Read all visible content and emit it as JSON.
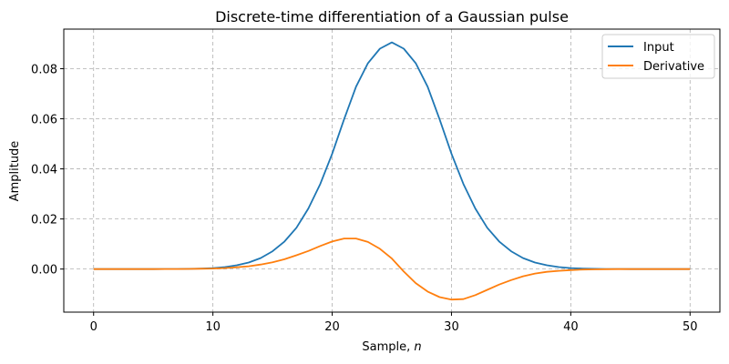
{
  "chart_data": {
    "type": "line",
    "title": "Discrete-time differentiation of a Gaussian pulse",
    "xlabel": "Sample, n",
    "xlabel_prefix": "Sample, ",
    "xlabel_var": "n",
    "ylabel": "Amplitude",
    "xlim": [
      -2.5,
      52.5
    ],
    "ylim": [
      -0.0172,
      0.0958
    ],
    "xticks": [
      0,
      10,
      20,
      30,
      40,
      50
    ],
    "xtick_labels": [
      "0",
      "10",
      "20",
      "30",
      "40",
      "50"
    ],
    "yticks": [
      0.0,
      0.02,
      0.04,
      0.06,
      0.08
    ],
    "ytick_labels": [
      "0.00",
      "0.02",
      "0.04",
      "0.06",
      "0.08"
    ],
    "grid": true,
    "legend_position": "upper right",
    "x": [
      0,
      1,
      2,
      3,
      4,
      5,
      6,
      7,
      8,
      9,
      10,
      11,
      12,
      13,
      14,
      15,
      16,
      17,
      18,
      19,
      20,
      21,
      22,
      23,
      24,
      25,
      26,
      27,
      28,
      29,
      30,
      31,
      32,
      33,
      34,
      35,
      36,
      37,
      38,
      39,
      40,
      41,
      42,
      43,
      44,
      45,
      46,
      47,
      48,
      49,
      50
    ],
    "series": [
      {
        "name": "Input",
        "color": "#1f77b4",
        "values": [
          0.0,
          0.0,
          0.0,
          0.0,
          0.0,
          0.0,
          1e-05,
          3e-05,
          8e-05,
          0.0002,
          0.0004,
          0.0008,
          0.0015,
          0.0026,
          0.0044,
          0.0071,
          0.011,
          0.0165,
          0.0242,
          0.034,
          0.046,
          0.0598,
          0.0728,
          0.0822,
          0.088,
          0.0905,
          0.088,
          0.0822,
          0.0728,
          0.0598,
          0.046,
          0.034,
          0.0242,
          0.0165,
          0.011,
          0.0071,
          0.0044,
          0.0026,
          0.0015,
          0.0008,
          0.0004,
          0.0002,
          8e-05,
          3e-05,
          1e-05,
          0.0,
          0.0,
          0.0,
          0.0,
          0.0,
          0.0
        ]
      },
      {
        "name": "Derivative",
        "color": "#ff7f0e",
        "values": [
          0.0,
          0.0,
          0.0,
          0.0,
          0.0,
          0.0,
          1e-05,
          2e-05,
          5e-05,
          0.00012,
          0.0002,
          0.0004,
          0.0007,
          0.0011,
          0.0018,
          0.0027,
          0.0039,
          0.0055,
          0.0072,
          0.0092,
          0.011,
          0.0122,
          0.0122,
          0.0108,
          0.0081,
          0.0042,
          -0.001,
          -0.0056,
          -0.009,
          -0.0112,
          -0.0122,
          -0.012,
          -0.0104,
          -0.0083,
          -0.0062,
          -0.0044,
          -0.0029,
          -0.0018,
          -0.0011,
          -0.0007,
          -0.0004,
          -0.0002,
          -0.00012,
          -5e-05,
          -2e-05,
          -1e-05,
          0.0,
          0.0,
          0.0,
          0.0,
          0.0
        ]
      }
    ]
  },
  "colors": {
    "input": "#1f77b4",
    "derivative": "#ff7f0e",
    "grid": "#b0b0b0"
  }
}
